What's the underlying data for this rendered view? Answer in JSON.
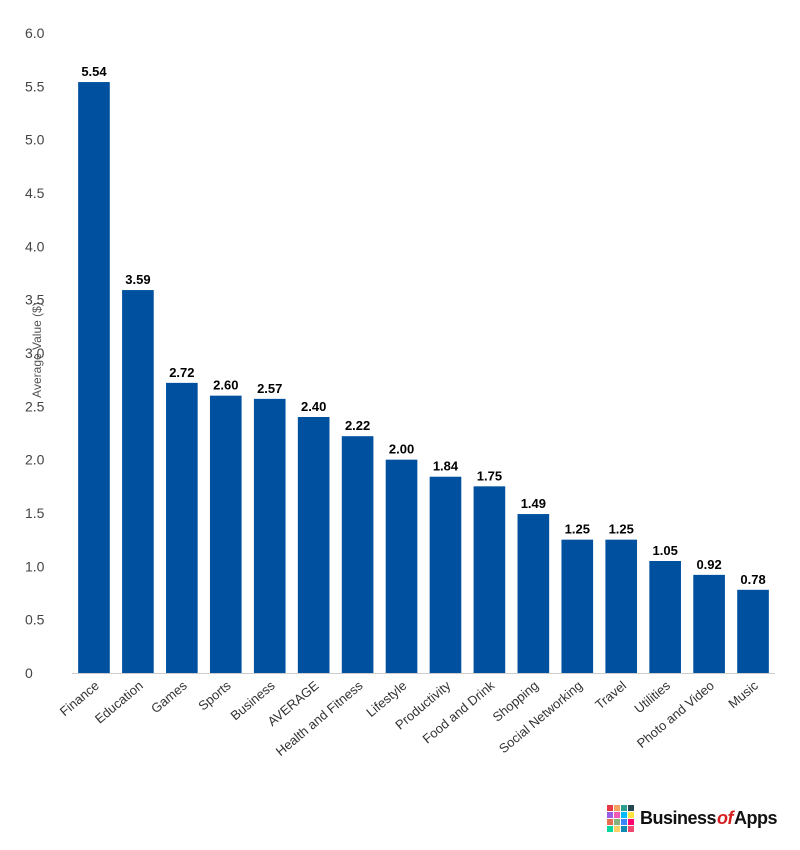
{
  "chart_data": {
    "type": "bar",
    "categories": [
      "Finance",
      "Education",
      "Games",
      "Sports",
      "Business",
      "AVERAGE",
      "Health and Fitness",
      "Lifestyle",
      "Productivity",
      "Food and Drink",
      "Shopping",
      "Social Networking",
      "Travel",
      "Utilities",
      "Photo and Video",
      "Music"
    ],
    "values": [
      5.54,
      3.59,
      2.72,
      2.6,
      2.57,
      2.4,
      2.22,
      2.0,
      1.84,
      1.75,
      1.49,
      1.25,
      1.25,
      1.05,
      0.92,
      0.78
    ],
    "data_labels": [
      "5.54",
      "3.59",
      "2.72",
      "2.60",
      "2.57",
      "2.40",
      "2.22",
      "2.00",
      "1.84",
      "1.75",
      "1.49",
      "1.25",
      "1.25",
      "1.05",
      "0.92",
      "0.78"
    ],
    "ylabel": "Average Value ($)",
    "ylim": [
      0,
      6
    ],
    "yticks": [
      "0",
      "0.5",
      "1.0",
      "1.5",
      "2.0",
      "2.5",
      "3.0",
      "3.5",
      "4.0",
      "4.5",
      "5.0",
      "5.5",
      "6.0"
    ],
    "bar_color": "#0050a0",
    "grid": false
  },
  "logo": {
    "text_part1": "Business",
    "text_part2": "of",
    "text_part3": "Apps",
    "colors": [
      "#e63946",
      "#f4a261",
      "#2a9d8f",
      "#264653",
      "#9b5de5",
      "#f15bb5",
      "#00bbf9",
      "#fee440",
      "#e76f51",
      "#8ab17d",
      "#3a86ff",
      "#ff006e",
      "#06d6a0",
      "#ffd166",
      "#118ab2",
      "#ef476f"
    ]
  }
}
